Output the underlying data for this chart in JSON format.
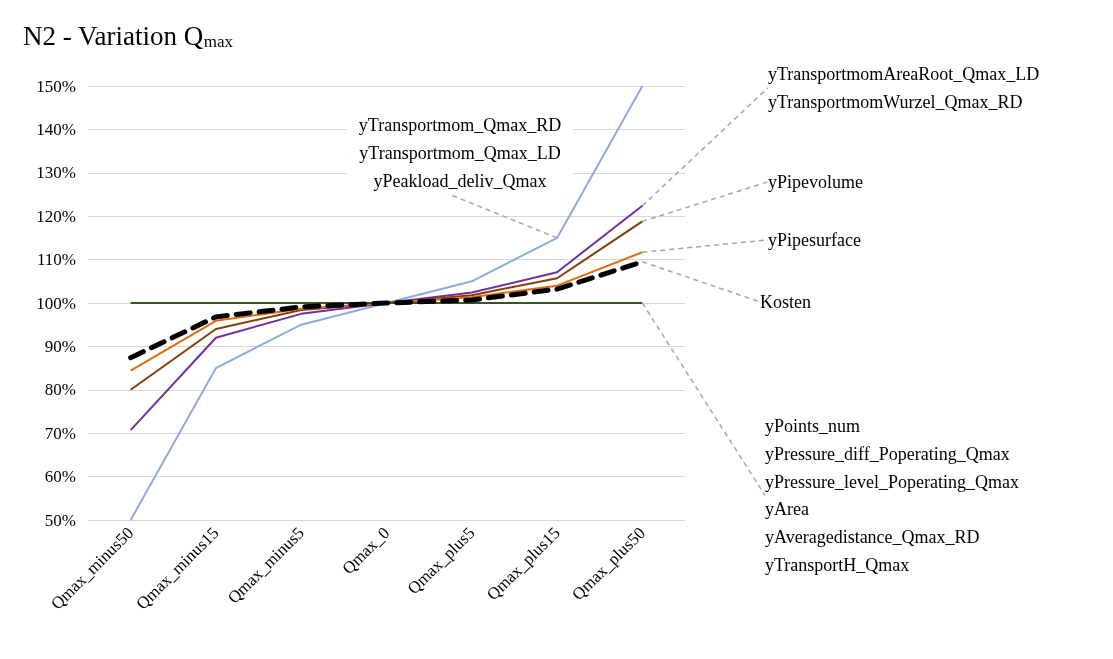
{
  "chart_data": {
    "type": "line",
    "title": "N2 - Variation Q$_{max}$",
    "categories": [
      "Qmax_minus50",
      "Qmax_minus15",
      "Qmax_minus5",
      "Qmax_0",
      "Qmax_plus5",
      "Qmax_plus15",
      "Qmax_plus50"
    ],
    "ylim": [
      50,
      150
    ],
    "yticks": [
      {
        "value": 50,
        "label": "50%"
      },
      {
        "value": 60,
        "label": "60%"
      },
      {
        "value": 70,
        "label": "70%"
      },
      {
        "value": 80,
        "label": "80%"
      },
      {
        "value": 90,
        "label": "90%"
      },
      {
        "value": 100,
        "label": "100%"
      },
      {
        "value": 110,
        "label": "110%"
      },
      {
        "value": 120,
        "label": "120%"
      },
      {
        "value": 130,
        "label": "130%"
      },
      {
        "value": 140,
        "label": "140%"
      },
      {
        "value": 150,
        "label": "150%"
      }
    ],
    "grid": "y",
    "marker": "none",
    "series": [
      {
        "name": "yTransportmom_Qmax_RD\nyTransportmom_Qmax_LD\nyPeakload_deliv_Qmax",
        "color": "#8faadc",
        "values": [
          50,
          85,
          95,
          100,
          105,
          115,
          150
        ]
      },
      {
        "name": "yTransportmomAreaRoot_Qmax_LD\nyTransportmomWurzel_Qmax_RD",
        "color": "#7030a0",
        "values": [
          70.7,
          92,
          97.5,
          100,
          102.4,
          107.1,
          122.4
        ]
      },
      {
        "name": "yPipevolume",
        "color": "#843c0c",
        "values": [
          80,
          94,
          98.4,
          100,
          101.8,
          105.7,
          118.8
        ]
      },
      {
        "name": "yPipesurface",
        "color": "#e26b0a",
        "values": [
          84.4,
          95.9,
          98.7,
          100,
          101.3,
          104,
          111.7
        ]
      },
      {
        "name": "Kosten",
        "color": "#000000",
        "line_style": "dashed",
        "values": [
          87.4,
          96.8,
          99.1,
          100,
          100.7,
          103.2,
          109.5
        ]
      },
      {
        "name": "yPoints_num\nyPressure_diff_Poperating_Qmax\nyPressure_level_Poperating_Qmax\nyArea\nyAveragedistance_Qmax_RD\nyTransportH_Qmax",
        "color": "#375623",
        "values": [
          100,
          100,
          100,
          100,
          100,
          100,
          100
        ]
      }
    ]
  }
}
